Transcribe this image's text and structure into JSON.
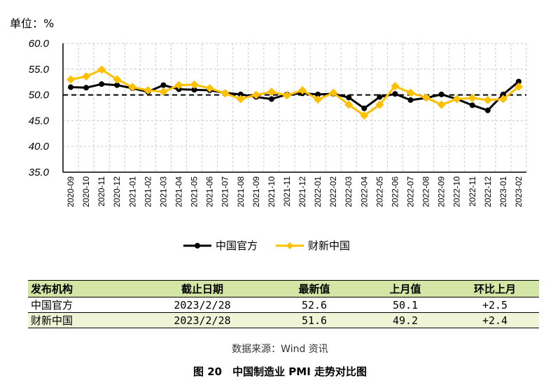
{
  "unit_label": "单位：%",
  "chart_data": {
    "type": "line",
    "ylim": [
      35,
      60
    ],
    "yticks": [
      "35.0",
      "40.0",
      "45.0",
      "50.0",
      "55.0",
      "60.0"
    ],
    "grid": true,
    "reference_line": 50,
    "categories": [
      "2020-09",
      "2020-10",
      "2020-11",
      "2020-12",
      "2021-01",
      "2021-02",
      "2021-03",
      "2021-04",
      "2021-05",
      "2021-06",
      "2021-07",
      "2021-08",
      "2021-09",
      "2021-10",
      "2021-11",
      "2021-12",
      "2022-01",
      "2022-02",
      "2022-03",
      "2022-04",
      "2022-05",
      "2022-06",
      "2022-07",
      "2022-08",
      "2022-09",
      "2022-10",
      "2022-11",
      "2022-12",
      "2023-01",
      "2023-02"
    ],
    "series": [
      {
        "name": "中国官方",
        "color": "#000000",
        "values": [
          51.5,
          51.4,
          52.1,
          51.9,
          51.3,
          50.6,
          51.9,
          51.1,
          51.0,
          50.9,
          50.4,
          50.1,
          49.6,
          49.2,
          50.1,
          50.3,
          50.1,
          50.2,
          49.5,
          47.4,
          49.6,
          50.2,
          49.0,
          49.4,
          50.1,
          49.2,
          48.0,
          47.0,
          50.1,
          52.6
        ]
      },
      {
        "name": "财新中国",
        "color": "#ffc000",
        "values": [
          53.0,
          53.6,
          54.9,
          53.0,
          51.5,
          50.9,
          50.6,
          51.9,
          52.0,
          51.3,
          50.3,
          49.2,
          50.0,
          50.6,
          49.9,
          50.9,
          49.1,
          50.4,
          48.1,
          46.0,
          48.1,
          51.7,
          50.4,
          49.5,
          48.1,
          49.2,
          49.4,
          49.0,
          49.2,
          51.6
        ]
      }
    ],
    "legend_position": "bottom"
  },
  "table": {
    "headers": [
      "发布机构",
      "截止日期",
      "最新值",
      "上月值",
      "环比上月"
    ],
    "rows": [
      [
        "中国官方",
        "2023/2/28",
        "52.6",
        "50.1",
        "+2.5"
      ],
      [
        "财新中国",
        "2023/2/28",
        "51.6",
        "49.2",
        "+2.4"
      ]
    ]
  },
  "source": "数据来源：Wind 资讯",
  "caption": "图 20　中国制造业 PMI 走势对比图"
}
